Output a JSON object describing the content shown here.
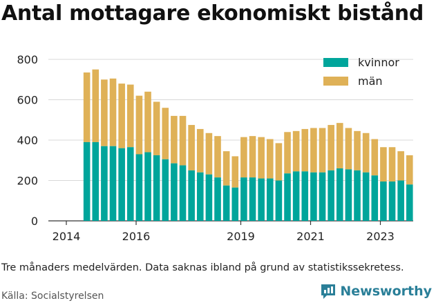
{
  "title": "Antal mottagare ekonomiskt bistånd",
  "note": "Tre månaders medelvärden. Data saknas ibland på grund av statistikssekretess.",
  "source": "Källa: Socialstyrelsen",
  "brand": {
    "name": "Newsworthy",
    "icon": "newsworthy-chart-icon",
    "color": "#2a7f98"
  },
  "colors": {
    "kvinnor": "#00a59b",
    "man": "#dfb157"
  },
  "chart_data": {
    "type": "bar",
    "stacked": true,
    "x_ticks": [
      "2014",
      "2016",
      "2019",
      "2021",
      "2023"
    ],
    "y_ticks": [
      "0",
      "200",
      "400",
      "600",
      "800"
    ],
    "ylim": [
      0,
      800
    ],
    "grid": true,
    "legend_position": "top-right",
    "categories": [
      "2014Q3",
      "2014Q4",
      "2015Q1",
      "2015Q2",
      "2015Q3",
      "2015Q4",
      "2016Q1",
      "2016Q2",
      "2016Q3",
      "2016Q4",
      "2017Q1",
      "2017Q2",
      "2017Q3",
      "2017Q4",
      "2018Q1",
      "2018Q2",
      "2018Q3",
      "2018Q4",
      "2019Q1",
      "2019Q2",
      "2019Q3",
      "2019Q4",
      "2020Q1",
      "2020Q2",
      "2020Q3",
      "2020Q4",
      "2021Q1",
      "2021Q2",
      "2021Q3",
      "2021Q4",
      "2022Q1",
      "2022Q2",
      "2022Q3",
      "2022Q4",
      "2023Q1",
      "2023Q2",
      "2023Q3",
      "2023Q4"
    ],
    "series": [
      {
        "name": "kvinnor",
        "values": [
          390,
          390,
          370,
          370,
          360,
          365,
          330,
          340,
          325,
          305,
          285,
          275,
          250,
          240,
          230,
          215,
          175,
          165,
          215,
          215,
          210,
          210,
          200,
          235,
          245,
          245,
          240,
          240,
          250,
          260,
          255,
          250,
          240,
          225,
          195,
          195,
          200,
          180
        ]
      },
      {
        "name": "män",
        "values": [
          345,
          360,
          330,
          335,
          320,
          310,
          290,
          300,
          265,
          255,
          235,
          245,
          225,
          215,
          205,
          205,
          170,
          155,
          200,
          205,
          205,
          195,
          185,
          205,
          200,
          210,
          220,
          220,
          225,
          225,
          205,
          195,
          195,
          180,
          170,
          170,
          145,
          145
        ]
      }
    ]
  }
}
